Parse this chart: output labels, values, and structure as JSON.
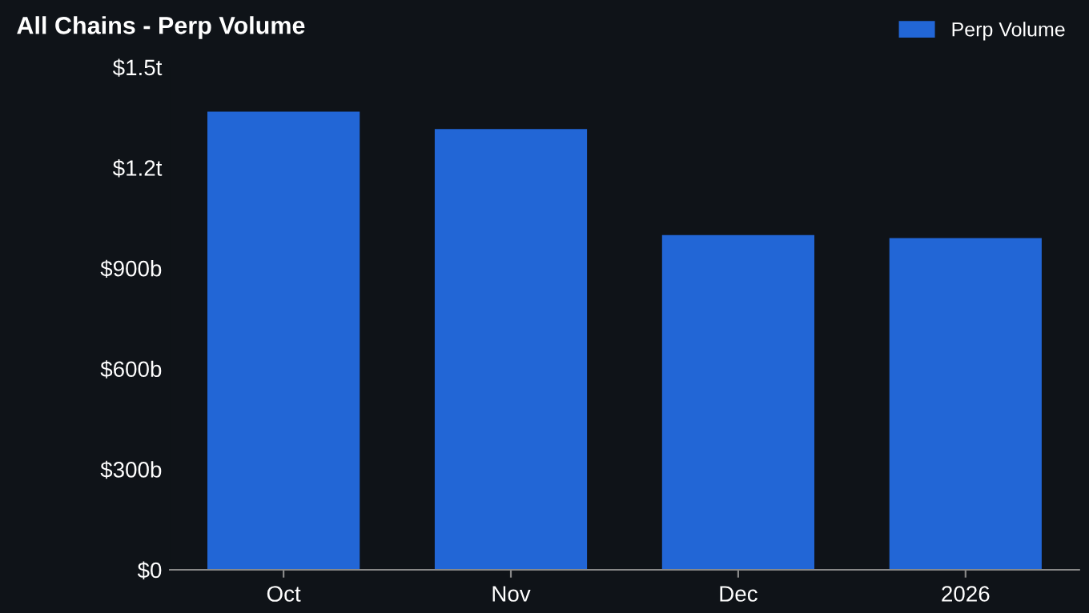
{
  "chart_data": {
    "type": "bar",
    "title": "All Chains - Perp Volume",
    "categories": [
      "Oct",
      "Nov",
      "Dec",
      "2026"
    ],
    "series": [
      {
        "name": "Perp Volume",
        "color": "#2266d6",
        "values": [
          1367000000000,
          1315000000000,
          999000000000,
          990000000000
        ]
      }
    ],
    "ylim": [
      0,
      1500000000000
    ],
    "yticks": [
      {
        "value": 0,
        "label": "$0"
      },
      {
        "value": 300000000000,
        "label": "$300b"
      },
      {
        "value": 600000000000,
        "label": "$600b"
      },
      {
        "value": 900000000000,
        "label": "$900b"
      },
      {
        "value": 1200000000000,
        "label": "$1.2t"
      },
      {
        "value": 1500000000000,
        "label": "$1.5t"
      }
    ],
    "grid": false,
    "legend": "top right"
  }
}
